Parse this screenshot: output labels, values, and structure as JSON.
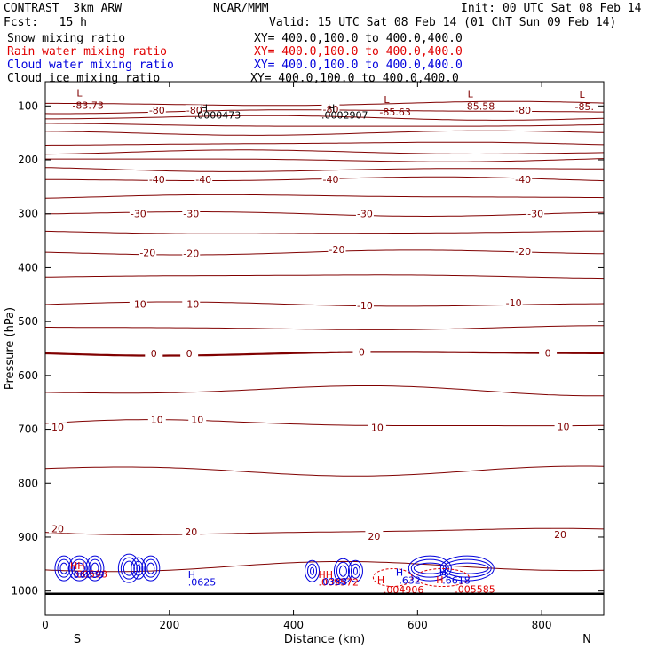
{
  "header": {
    "model": "CONTRAST  3km ARW",
    "org": "NCAR/MMM",
    "init": "Init: 00 UTC Sat 08 Feb 14",
    "fcst": "Fcst:   15 h",
    "valid": "Valid: 15 UTC Sat 08 Feb 14 (01 ChT Sun 09 Feb 14)"
  },
  "fields": [
    {
      "name": "Snow mixing ratio",
      "xy": "XY= 400.0,100.0 to 400.0,400.0",
      "color": "#000000"
    },
    {
      "name": "Rain water mixing ratio",
      "xy": "XY= 400.0,100.0 to 400.0,400.0",
      "color": "#e00000"
    },
    {
      "name": "Cloud water mixing ratio",
      "xy": "XY= 400.0,100.0 to 400.0,400.0",
      "color": "#0000dd"
    },
    {
      "name": "Cloud ice mixing ratio",
      "xy": "XY= 400.0,100.0 to 400.0,400.0",
      "color": "#000000"
    }
  ],
  "chart_data": {
    "type": "cross-section contour",
    "xlabel": "Distance (km)",
    "ylabel": "Pressure (hPa)",
    "xlim": [
      0,
      900
    ],
    "ylim": [
      1045,
      55
    ],
    "x_ticks": [
      0,
      200,
      400,
      600,
      800
    ],
    "y_ticks": [
      100,
      200,
      300,
      400,
      500,
      600,
      700,
      800,
      900,
      1000
    ],
    "x_end_labels": {
      "left": "S",
      "right": "N"
    },
    "temperature_color": "#800000",
    "contour_labels": [
      {
        "text": "-80",
        "x": 180,
        "p": 108
      },
      {
        "text": "-80",
        "x": 240,
        "p": 108
      },
      {
        "text": "-80",
        "x": 460,
        "p": 106
      },
      {
        "text": "-80",
        "x": 770,
        "p": 108
      },
      {
        "text": "-40",
        "x": 180,
        "p": 236
      },
      {
        "text": "-40",
        "x": 255,
        "p": 236
      },
      {
        "text": "-40",
        "x": 460,
        "p": 236
      },
      {
        "text": "-40",
        "x": 770,
        "p": 236
      },
      {
        "text": "-30",
        "x": 150,
        "p": 300
      },
      {
        "text": "-30",
        "x": 235,
        "p": 300
      },
      {
        "text": "-30",
        "x": 515,
        "p": 300
      },
      {
        "text": "-30",
        "x": 790,
        "p": 300
      },
      {
        "text": "-20",
        "x": 165,
        "p": 372
      },
      {
        "text": "-20",
        "x": 235,
        "p": 374
      },
      {
        "text": "-20",
        "x": 470,
        "p": 366
      },
      {
        "text": "-20",
        "x": 770,
        "p": 370
      },
      {
        "text": "-10",
        "x": 150,
        "p": 468
      },
      {
        "text": "-10",
        "x": 235,
        "p": 468
      },
      {
        "text": "-10",
        "x": 515,
        "p": 470
      },
      {
        "text": "-10",
        "x": 755,
        "p": 465
      },
      {
        "text": "0",
        "x": 175,
        "p": 559
      },
      {
        "text": "0",
        "x": 232,
        "p": 559
      },
      {
        "text": "0",
        "x": 510,
        "p": 557
      },
      {
        "text": "0",
        "x": 810,
        "p": 558
      },
      {
        "text": "10",
        "x": 180,
        "p": 682
      },
      {
        "text": "10",
        "x": 245,
        "p": 682
      },
      {
        "text": "10",
        "x": 20,
        "p": 696
      },
      {
        "text": "10",
        "x": 535,
        "p": 697
      },
      {
        "text": "10",
        "x": 835,
        "p": 695
      },
      {
        "text": "20",
        "x": 20,
        "p": 884
      },
      {
        "text": "20",
        "x": 235,
        "p": 890
      },
      {
        "text": "20",
        "x": 530,
        "p": 898
      },
      {
        "text": "20",
        "x": 830,
        "p": 895
      }
    ],
    "extrema": [
      {
        "marker": "L",
        "value": "-83.73",
        "x": 55,
        "p": 76
      },
      {
        "marker": "L",
        "value": "-85.63",
        "x": 550,
        "p": 88
      },
      {
        "marker": "L",
        "value": "-85.58",
        "x": 685,
        "p": 77
      },
      {
        "marker": "L",
        "value": "-85.",
        "x": 865,
        "p": 78
      }
    ],
    "annotations": [
      {
        "text": "H",
        "x": 250,
        "p": 104,
        "color": "#000000"
      },
      {
        "text": ".0000473",
        "x": 240,
        "p": 117,
        "color": "#000000"
      },
      {
        "text": "H",
        "x": 455,
        "p": 104,
        "color": "#000000"
      },
      {
        "text": ".0002907",
        "x": 445,
        "p": 117,
        "color": "#000000"
      },
      {
        "text": "HH",
        "x": 40,
        "p": 953,
        "color": "#e00000"
      },
      {
        "text": ".00598",
        "x": 45,
        "p": 968,
        "color": "#e00000"
      },
      {
        "text": ".06839",
        "x": 40,
        "p": 969,
        "color": "#0000dd"
      },
      {
        "text": "H",
        "x": 230,
        "p": 969,
        "color": "#0000dd"
      },
      {
        "text": ".0625",
        "x": 230,
        "p": 983,
        "color": "#0000dd"
      },
      {
        "text": "HH",
        "x": 440,
        "p": 969,
        "color": "#e00000"
      },
      {
        "text": ".009572",
        "x": 440,
        "p": 983,
        "color": "#e00000"
      },
      {
        "text": ".0383",
        "x": 442,
        "p": 982,
        "color": "#0000dd"
      },
      {
        "text": "H",
        "x": 535,
        "p": 979,
        "color": "#e00000"
      },
      {
        "text": ".004906",
        "x": 545,
        "p": 997,
        "color": "#e00000"
      },
      {
        "text": "H",
        "x": 565,
        "p": 965,
        "color": "#0000dd"
      },
      {
        "text": ".632",
        "x": 570,
        "p": 980,
        "color": "#0000dd"
      },
      {
        "text": "H",
        "x": 635,
        "p": 965,
        "color": "#0000dd"
      },
      {
        "text": "H",
        "x": 630,
        "p": 979,
        "color": "#e00000"
      },
      {
        "text": ".6618",
        "x": 640,
        "p": 980,
        "color": "#0000dd"
      },
      {
        "text": ".005585",
        "x": 660,
        "p": 996,
        "color": "#e00000"
      }
    ],
    "terrain_surface_hpa": 1005,
    "series": [
      {
        "name": "temperature",
        "levels": [
          -85,
          -80,
          -75,
          -70,
          -65,
          -60,
          -55,
          -50,
          -45,
          -40,
          -35,
          -30,
          -25,
          -20,
          -15,
          -10,
          -5,
          0,
          5,
          10,
          15,
          20,
          25
        ]
      }
    ]
  }
}
